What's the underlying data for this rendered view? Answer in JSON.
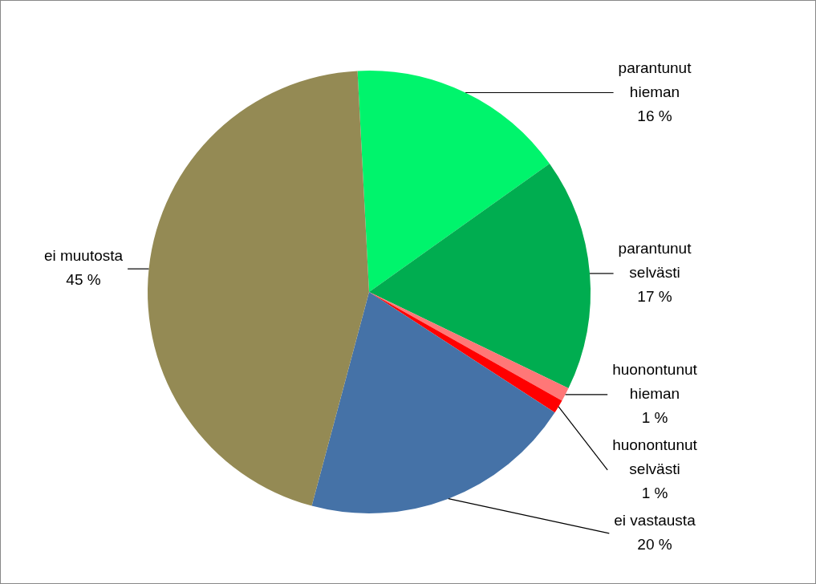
{
  "chart_data": {
    "type": "pie",
    "categories": [
      "parantunut hieman",
      "parantunut selvästi",
      "huonontunut hieman",
      "huonontunut selvästi",
      "ei vastausta",
      "ei muutosta"
    ],
    "values": [
      16,
      17,
      1,
      1,
      20,
      45
    ],
    "value_labels": [
      "16 %",
      "17 %",
      "1 %",
      "1 %",
      "20 %",
      "45 %"
    ],
    "colors": [
      "#00f46c",
      "#00ad50",
      "#ff7777",
      "#ff0000",
      "#4572a7",
      "#948a54"
    ],
    "data_labels": true
  }
}
